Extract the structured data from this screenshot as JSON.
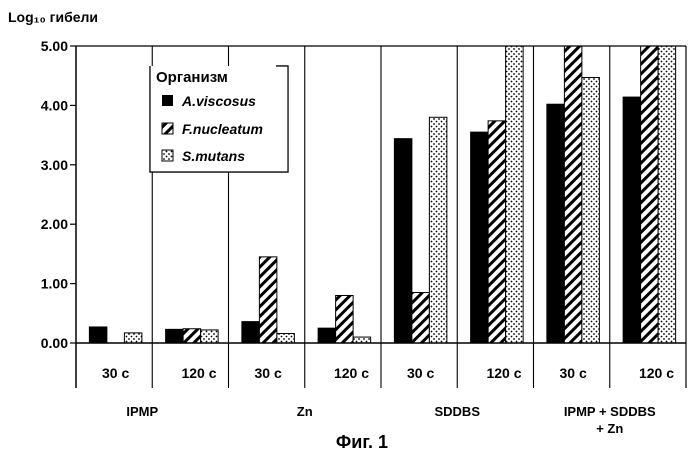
{
  "chart_data": {
    "type": "bar",
    "ylabel": "Log₁₀ гибели",
    "caption": "Фиг. 1",
    "ylim": [
      0,
      5
    ],
    "yticks": [
      "0.00",
      "1.00",
      "2.00",
      "3.00",
      "4.00",
      "5.00"
    ],
    "grid": false,
    "legend": {
      "title": "Организм",
      "placement": "top-left",
      "items": [
        "A.viscosus",
        "F.nucleatum",
        "S.mutans"
      ]
    },
    "groups": [
      {
        "label": [
          "IPMP"
        ]
      },
      {
        "label": [
          "Zn"
        ]
      },
      {
        "label": [
          "SDDBS"
        ]
      },
      {
        "label": [
          "IPMP + SDDBS",
          "+ Zn"
        ]
      }
    ],
    "categories": [
      "30 с",
      "120 с",
      "30 с",
      "120 с",
      "30 с",
      "120 с",
      "30 с",
      "120 с"
    ],
    "series": [
      {
        "name": "A.viscosus",
        "color": "#000000",
        "pattern": "solid",
        "values": [
          0.27,
          0.23,
          0.36,
          0.25,
          3.44,
          3.55,
          4.02,
          4.14
        ]
      },
      {
        "name": "F.nucleatum",
        "color": "#000000",
        "pattern": "hatch",
        "values": [
          0,
          0.24,
          1.45,
          0.8,
          0.85,
          3.74,
          5.0,
          5.0
        ]
      },
      {
        "name": "S.mutans",
        "color": "#000000",
        "pattern": "dots",
        "values": [
          0.17,
          0.22,
          0.16,
          0.1,
          3.8,
          5.0,
          4.47,
          5.0
        ]
      }
    ]
  }
}
